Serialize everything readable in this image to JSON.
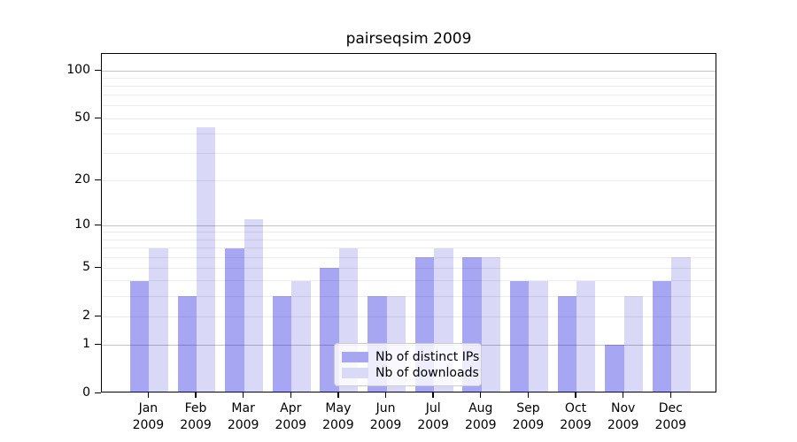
{
  "chart_data": {
    "type": "bar",
    "title": "pairseqsim 2009",
    "categories": [
      "Jan",
      "Feb",
      "Mar",
      "Apr",
      "May",
      "Jun",
      "Jul",
      "Aug",
      "Sep",
      "Oct",
      "Nov",
      "Dec"
    ],
    "year_label": "2009",
    "series": [
      {
        "name": "Nb of distinct IPs",
        "color": "#a6a6f1",
        "values": [
          4,
          3,
          7,
          3,
          5,
          3,
          6,
          6,
          4,
          3,
          1,
          4
        ]
      },
      {
        "name": "Nb of downloads",
        "color": "#dadaf7",
        "values": [
          7,
          44,
          11,
          4,
          7,
          3,
          7,
          6,
          4,
          4,
          3,
          6
        ]
      }
    ],
    "yscale": "log1p",
    "ylim": [
      0,
      126
    ],
    "yticks": [
      0,
      1,
      2,
      5,
      10,
      20,
      50,
      100
    ],
    "major_gridlines": [
      1,
      10,
      100
    ],
    "minor_gridlines": [
      2,
      3,
      4,
      5,
      6,
      7,
      8,
      9,
      20,
      30,
      40,
      50,
      60,
      70,
      80,
      90
    ],
    "grid": "on",
    "legend_position": "lower center",
    "background_color": "#ffffff",
    "axis_color": "#000000"
  }
}
